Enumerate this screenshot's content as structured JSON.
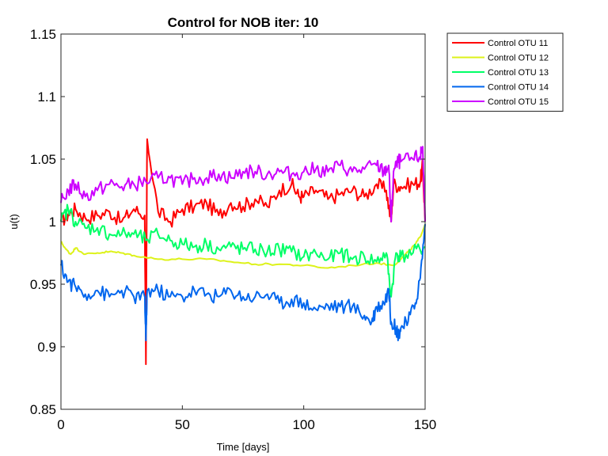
{
  "chart_data": {
    "type": "line",
    "title": "Control for NOB iter: 10",
    "xlabel": "Time [days]",
    "ylabel": "u(t)",
    "xlim": [
      0,
      150
    ],
    "ylim": [
      0.85,
      1.15
    ],
    "xticks": [
      0,
      50,
      100,
      150
    ],
    "yticks": [
      0.85,
      0.9,
      0.95,
      1,
      1.05,
      1.1,
      1.15
    ],
    "xtick_labels": [
      "0",
      "50",
      "100",
      "150"
    ],
    "ytick_labels": [
      "0.85",
      "0.9",
      "0.95",
      "1",
      "1.05",
      "1.1",
      "1.15"
    ],
    "grid": false,
    "legend_position": "outside top-right",
    "series": [
      {
        "name": "Control OTU 11",
        "color": "#ff0000",
        "x": [
          0,
          3,
          6,
          10,
          15,
          20,
          25,
          30,
          34.5,
          35,
          35.5,
          40,
          45,
          50,
          55,
          60,
          65,
          70,
          75,
          80,
          85,
          90,
          95,
          98,
          100,
          105,
          110,
          115,
          120,
          125,
          130,
          134,
          136,
          137,
          140,
          145,
          148,
          149,
          150
        ],
        "y": [
          1.0,
          1.006,
          1.01,
          1.003,
          1.005,
          1.008,
          1.0,
          1.01,
          1.005,
          0.886,
          1.066,
          1.008,
          1.0,
          1.01,
          1.012,
          1.015,
          1.005,
          1.015,
          1.012,
          1.018,
          1.012,
          1.025,
          1.03,
          1.02,
          1.02,
          1.025,
          1.018,
          1.022,
          1.025,
          1.02,
          1.03,
          1.025,
          1.0,
          1.03,
          1.028,
          1.03,
          1.032,
          1.045,
          1.0
        ]
      },
      {
        "name": "Control OTU 12",
        "color": "#ddf21a",
        "x": [
          0,
          2,
          4,
          6,
          10,
          15,
          20,
          25,
          30,
          40,
          50,
          60,
          70,
          80,
          90,
          100,
          110,
          120,
          130,
          137,
          140,
          143,
          146,
          148,
          150
        ],
        "y": [
          0.984,
          0.978,
          0.974,
          0.979,
          0.974,
          0.975,
          0.976,
          0.975,
          0.973,
          0.97,
          0.97,
          0.97,
          0.968,
          0.966,
          0.966,
          0.965,
          0.963,
          0.965,
          0.967,
          0.965,
          0.97,
          0.976,
          0.982,
          0.988,
          0.998
        ]
      },
      {
        "name": "Control OTU 13",
        "color": "#00ff66",
        "x": [
          0,
          3,
          6,
          10,
          15,
          20,
          25,
          30,
          35,
          40,
          45,
          50,
          55,
          60,
          65,
          70,
          75,
          80,
          85,
          90,
          95,
          100,
          105,
          110,
          115,
          120,
          125,
          130,
          134,
          136,
          138,
          140,
          145,
          150
        ],
        "y": [
          1.0,
          1.01,
          1.0,
          0.995,
          0.995,
          0.99,
          0.99,
          0.99,
          0.985,
          0.99,
          0.985,
          0.982,
          0.98,
          0.982,
          0.978,
          0.98,
          0.978,
          0.978,
          0.976,
          0.978,
          0.976,
          0.972,
          0.975,
          0.97,
          0.975,
          0.97,
          0.972,
          0.968,
          0.975,
          0.94,
          0.975,
          0.972,
          0.975,
          0.98
        ]
      },
      {
        "name": "Control OTU 14",
        "color": "#0066ee",
        "x": [
          0,
          3,
          6,
          10,
          15,
          20,
          25,
          30,
          34.5,
          35,
          35.5,
          40,
          45,
          50,
          55,
          60,
          65,
          70,
          75,
          80,
          85,
          90,
          95,
          100,
          105,
          110,
          115,
          120,
          125,
          128,
          130,
          133,
          135,
          136,
          138,
          139,
          140,
          143,
          146,
          148,
          150
        ],
        "y": [
          0.965,
          0.952,
          0.948,
          0.942,
          0.945,
          0.94,
          0.945,
          0.94,
          0.94,
          0.905,
          0.945,
          0.945,
          0.94,
          0.94,
          0.945,
          0.942,
          0.94,
          0.945,
          0.94,
          0.94,
          0.942,
          0.935,
          0.938,
          0.935,
          0.93,
          0.933,
          0.932,
          0.932,
          0.925,
          0.92,
          0.932,
          0.935,
          0.946,
          0.92,
          0.915,
          0.91,
          0.915,
          0.92,
          0.935,
          0.955,
          0.998
        ]
      },
      {
        "name": "Control OTU 15",
        "color": "#cc00ff",
        "x": [
          0,
          3,
          6,
          10,
          15,
          20,
          25,
          30,
          35,
          40,
          45,
          50,
          55,
          60,
          65,
          70,
          75,
          80,
          85,
          90,
          95,
          100,
          105,
          110,
          115,
          120,
          125,
          130,
          133,
          135,
          136,
          137,
          139,
          140,
          145,
          148,
          149,
          150
        ],
        "y": [
          1.015,
          1.025,
          1.03,
          1.02,
          1.025,
          1.03,
          1.028,
          1.03,
          1.032,
          1.035,
          1.035,
          1.03,
          1.035,
          1.035,
          1.038,
          1.035,
          1.04,
          1.04,
          1.038,
          1.04,
          1.038,
          1.04,
          1.042,
          1.04,
          1.045,
          1.04,
          1.042,
          1.045,
          1.04,
          1.045,
          1.0,
          1.04,
          1.048,
          1.048,
          1.05,
          1.052,
          1.06,
          1.0
        ]
      }
    ]
  }
}
